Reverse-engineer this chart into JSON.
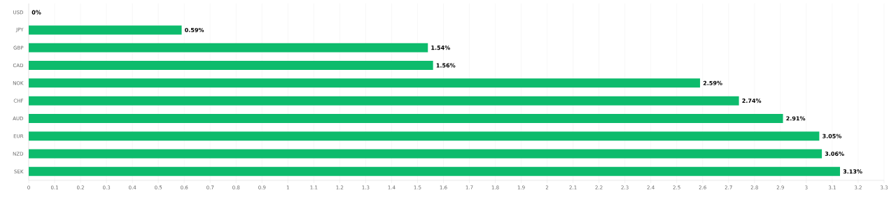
{
  "chart_data": {
    "type": "bar",
    "orientation": "horizontal",
    "categories": [
      "USD",
      "JPY",
      "GBP",
      "CAD",
      "NOK",
      "CHF",
      "AUD",
      "EUR",
      "NZD",
      "SEK"
    ],
    "values": [
      0,
      0.59,
      1.54,
      1.56,
      2.59,
      2.74,
      2.91,
      3.05,
      3.06,
      3.13
    ],
    "value_labels": [
      "0%",
      "0.59%",
      "1.54%",
      "1.56%",
      "2.59%",
      "2.74%",
      "2.91%",
      "3.05%",
      "3.06%",
      "3.13%"
    ],
    "color": "#0dbb6c",
    "xlim": [
      0,
      3.3
    ],
    "xticks": [
      0,
      0.1,
      0.2,
      0.3,
      0.4,
      0.5,
      0.6,
      0.7,
      0.8,
      0.9,
      1,
      1.1,
      1.2,
      1.3,
      1.4,
      1.5,
      1.6,
      1.7,
      1.8,
      1.9,
      2,
      2.1,
      2.2,
      2.3,
      2.4,
      2.5,
      2.6,
      2.7,
      2.8,
      2.9,
      3,
      3.1,
      3.2,
      3.3
    ],
    "grid": "x"
  }
}
